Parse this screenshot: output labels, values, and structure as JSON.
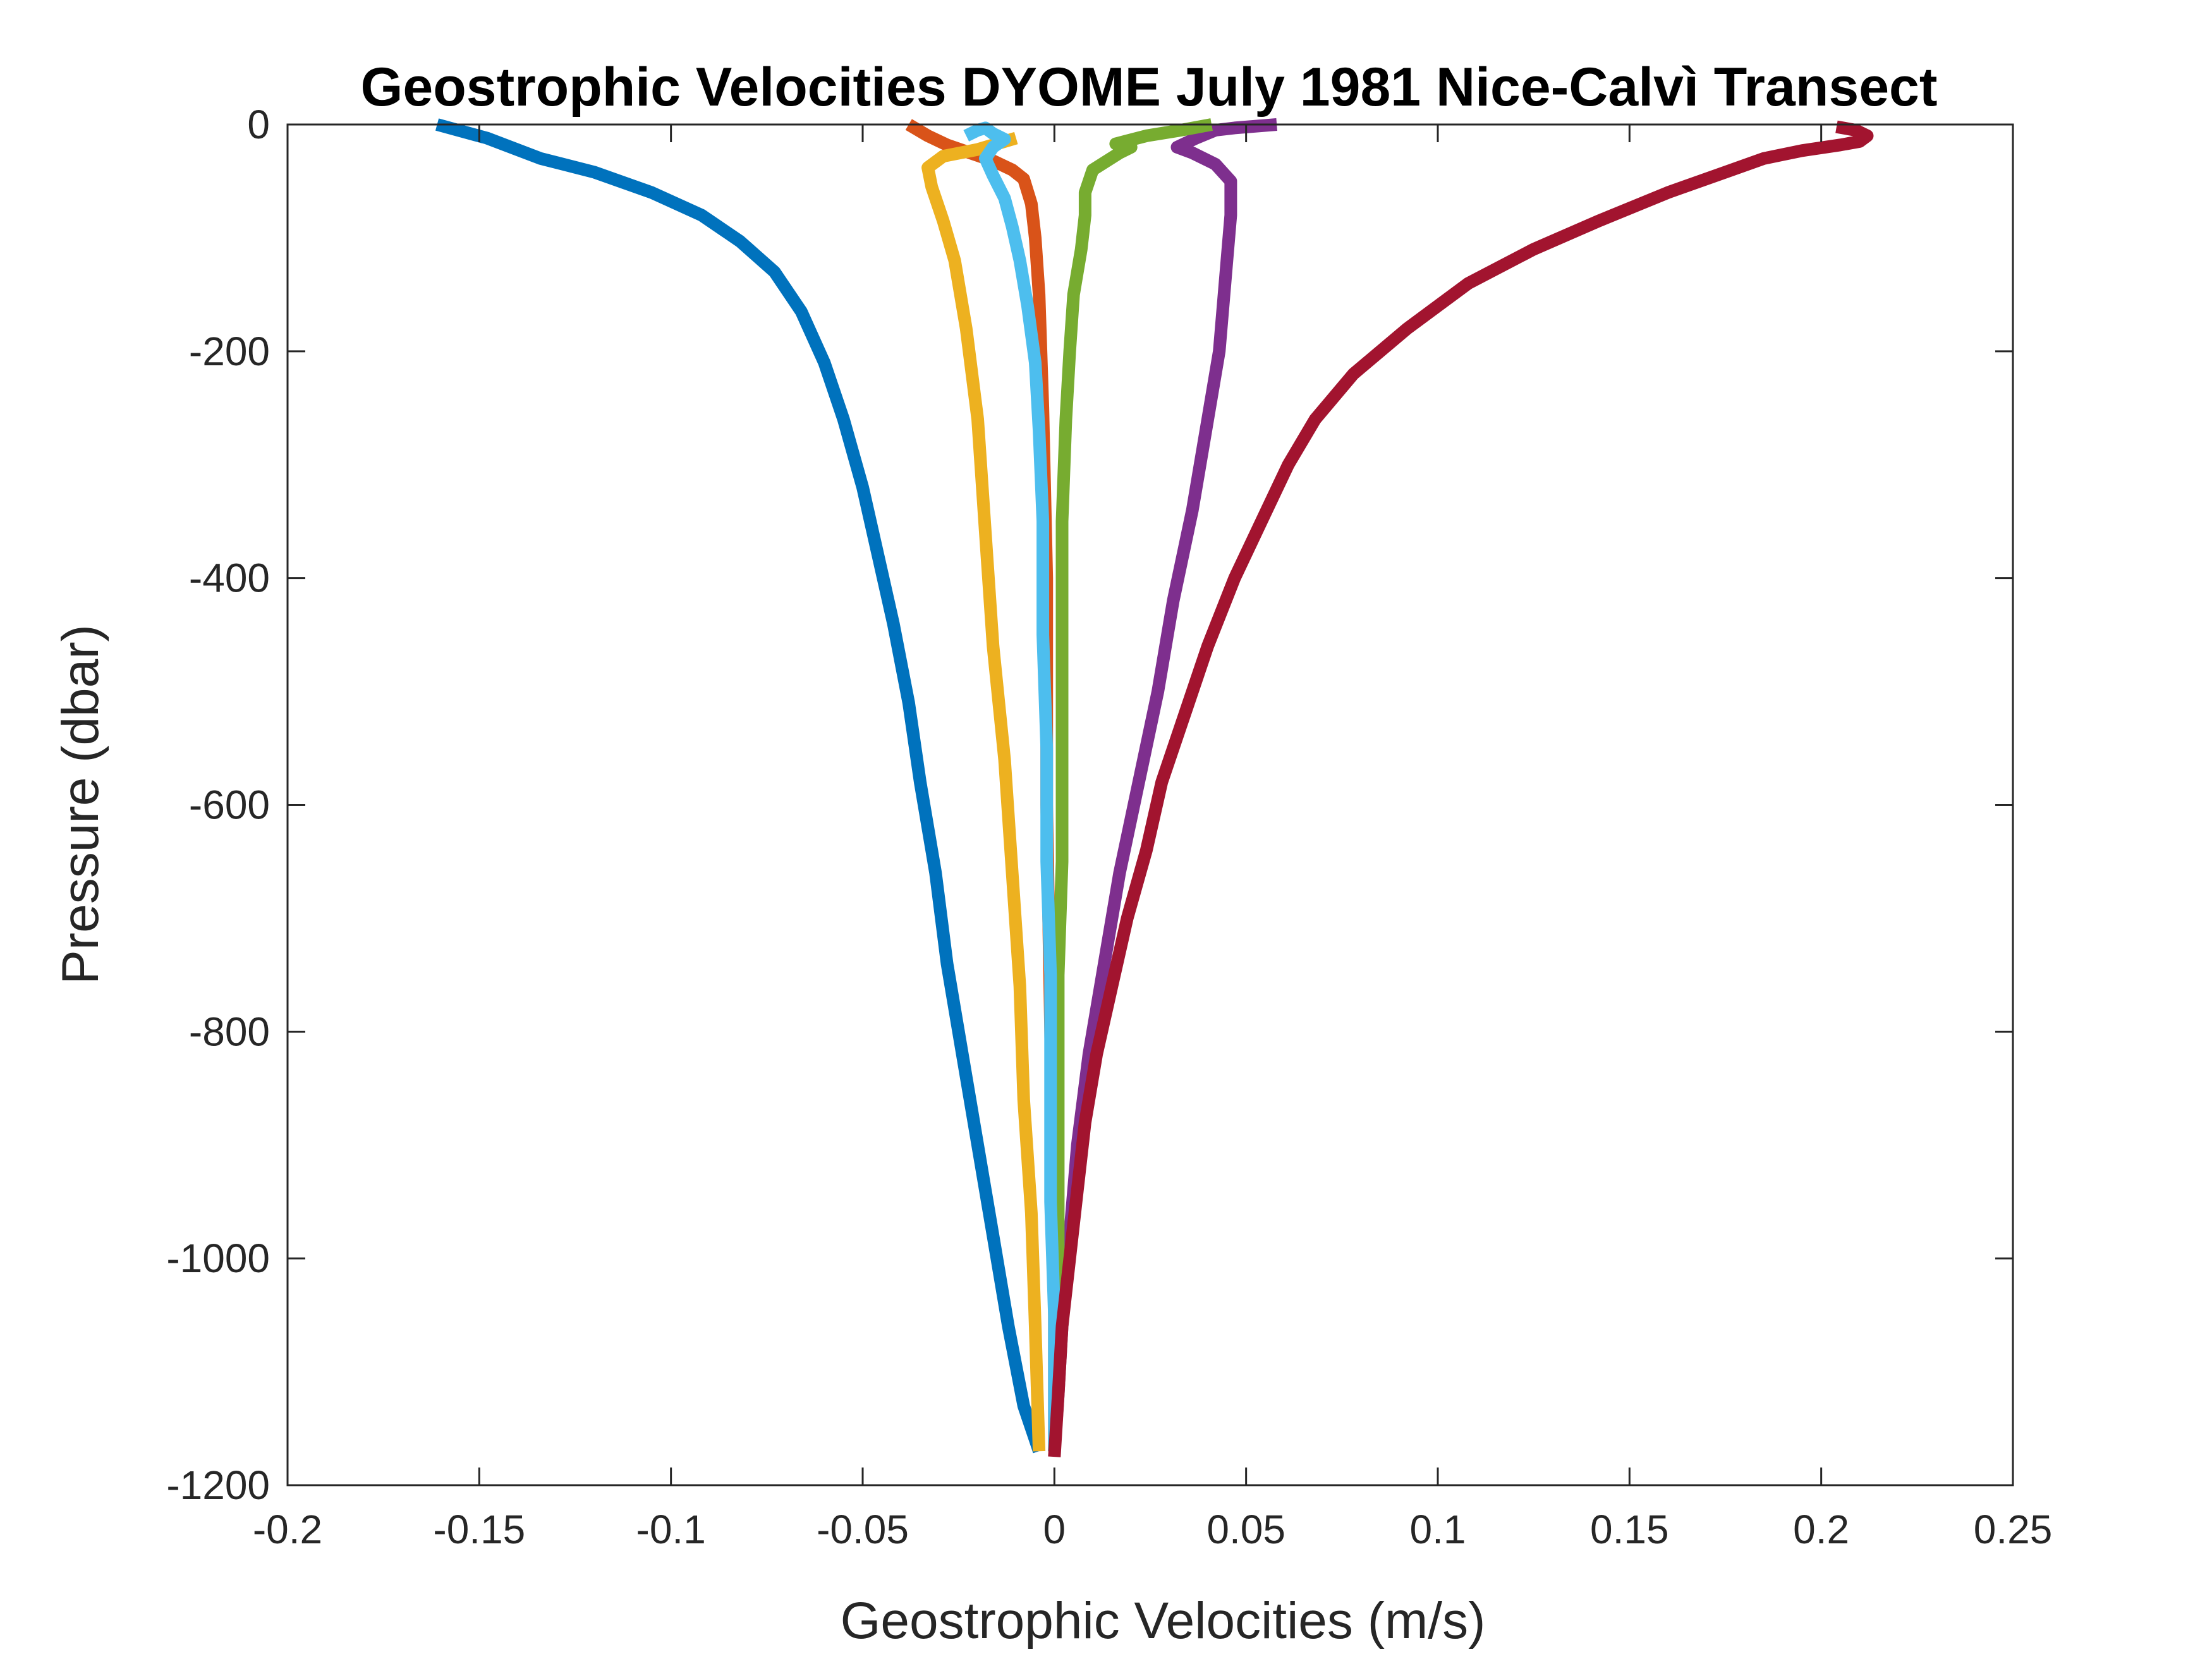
{
  "chart_data": {
    "type": "line",
    "title": "Geostrophic Velocities DYOME July 1981 Nice-Calvì Transect",
    "xlabel": "Geostrophic Velocities (m/s)",
    "ylabel": "Pressure (dbar)",
    "xlim": [
      -0.2,
      0.25
    ],
    "ylim": [
      -1200,
      0
    ],
    "xticks": [
      -0.2,
      -0.15,
      -0.1,
      -0.05,
      0,
      0.05,
      0.1,
      0.15,
      0.2,
      0.25
    ],
    "xtick_labels": [
      "-0.2",
      "-0.15",
      "-0.1",
      "-0.05",
      "0",
      "0.05",
      "0.1",
      "0.15",
      "0.2",
      "0.25"
    ],
    "yticks": [
      0,
      -200,
      -400,
      -600,
      -800,
      -1000,
      -1200
    ],
    "ytick_labels": [
      "0",
      "-200",
      "-400",
      "-600",
      "-800",
      "-1000",
      "-1200"
    ],
    "grid": false,
    "legend": "none",
    "series": [
      {
        "color": "#0072BD",
        "points": [
          [
            -0.161,
            0
          ],
          [
            -0.148,
            -12
          ],
          [
            -0.134,
            -30
          ],
          [
            -0.12,
            -42
          ],
          [
            -0.105,
            -60
          ],
          [
            -0.092,
            -80
          ],
          [
            -0.082,
            -103
          ],
          [
            -0.073,
            -130
          ],
          [
            -0.066,
            -165
          ],
          [
            -0.06,
            -210
          ],
          [
            -0.055,
            -260
          ],
          [
            -0.05,
            -320
          ],
          [
            -0.046,
            -380
          ],
          [
            -0.042,
            -440
          ],
          [
            -0.038,
            -510
          ],
          [
            -0.035,
            -580
          ],
          [
            -0.031,
            -660
          ],
          [
            -0.028,
            -740
          ],
          [
            -0.024,
            -820
          ],
          [
            -0.02,
            -900
          ],
          [
            -0.016,
            -980
          ],
          [
            -0.012,
            -1060
          ],
          [
            -0.008,
            -1130
          ],
          [
            -0.004,
            -1170
          ]
        ]
      },
      {
        "color": "#D95319",
        "points": [
          [
            -0.038,
            0
          ],
          [
            -0.033,
            -10
          ],
          [
            -0.028,
            -18
          ],
          [
            -0.022,
            -25
          ],
          [
            -0.016,
            -32
          ],
          [
            -0.011,
            -40
          ],
          [
            -0.008,
            -48
          ],
          [
            -0.006,
            -70
          ],
          [
            -0.005,
            -100
          ],
          [
            -0.004,
            -150
          ],
          [
            -0.003,
            -250
          ],
          [
            -0.002,
            -400
          ],
          [
            -0.002,
            -600
          ],
          [
            -0.001,
            -800
          ],
          [
            0.0,
            -1000
          ],
          [
            0.0,
            -1170
          ]
        ]
      },
      {
        "color": "#EDB120",
        "points": [
          [
            -0.01,
            -12
          ],
          [
            -0.02,
            -22
          ],
          [
            -0.029,
            -28
          ],
          [
            -0.033,
            -38
          ],
          [
            -0.032,
            -55
          ],
          [
            -0.029,
            -85
          ],
          [
            -0.026,
            -120
          ],
          [
            -0.023,
            -180
          ],
          [
            -0.02,
            -260
          ],
          [
            -0.018,
            -360
          ],
          [
            -0.016,
            -460
          ],
          [
            -0.013,
            -560
          ],
          [
            -0.011,
            -660
          ],
          [
            -0.009,
            -760
          ],
          [
            -0.008,
            -860
          ],
          [
            -0.006,
            -960
          ],
          [
            -0.005,
            -1060
          ],
          [
            -0.004,
            -1170
          ]
        ]
      },
      {
        "color": "#7E2F8E",
        "points": [
          [
            0.058,
            0
          ],
          [
            0.047,
            -3
          ],
          [
            0.042,
            -5
          ],
          [
            0.037,
            -12
          ],
          [
            0.032,
            -20
          ],
          [
            0.036,
            -25
          ],
          [
            0.042,
            -35
          ],
          [
            0.046,
            -50
          ],
          [
            0.046,
            -80
          ],
          [
            0.045,
            -120
          ],
          [
            0.043,
            -200
          ],
          [
            0.04,
            -260
          ],
          [
            0.036,
            -340
          ],
          [
            0.031,
            -420
          ],
          [
            0.027,
            -500
          ],
          [
            0.022,
            -580
          ],
          [
            0.017,
            -660
          ],
          [
            0.013,
            -740
          ],
          [
            0.009,
            -820
          ],
          [
            0.006,
            -900
          ],
          [
            0.004,
            -980
          ],
          [
            0.002,
            -1060
          ],
          [
            0.001,
            -1120
          ],
          [
            0.0,
            -1170
          ]
        ]
      },
      {
        "color": "#77AC30",
        "points": [
          [
            0.041,
            0
          ],
          [
            0.033,
            -5
          ],
          [
            0.024,
            -10
          ],
          [
            0.016,
            -17
          ],
          [
            0.02,
            -20
          ],
          [
            0.017,
            -25
          ],
          [
            0.01,
            -40
          ],
          [
            0.008,
            -60
          ],
          [
            0.008,
            -80
          ],
          [
            0.007,
            -110
          ],
          [
            0.005,
            -150
          ],
          [
            0.004,
            -200
          ],
          [
            0.003,
            -260
          ],
          [
            0.002,
            -350
          ],
          [
            0.002,
            -450
          ],
          [
            0.002,
            -550
          ],
          [
            0.002,
            -650
          ],
          [
            0.001,
            -750
          ],
          [
            0.001,
            -850
          ],
          [
            0.001,
            -950
          ],
          [
            0.001,
            -1050
          ],
          [
            0.0,
            -1170
          ]
        ]
      },
      {
        "color": "#4DBEEE",
        "points": [
          [
            -0.023,
            -10
          ],
          [
            -0.02,
            -5
          ],
          [
            -0.018,
            -3
          ],
          [
            -0.016,
            -8
          ],
          [
            -0.013,
            -13
          ],
          [
            -0.016,
            -20
          ],
          [
            -0.018,
            -30
          ],
          [
            -0.016,
            -45
          ],
          [
            -0.013,
            -65
          ],
          [
            -0.011,
            -90
          ],
          [
            -0.009,
            -120
          ],
          [
            -0.007,
            -160
          ],
          [
            -0.005,
            -210
          ],
          [
            -0.004,
            -270
          ],
          [
            -0.003,
            -350
          ],
          [
            -0.003,
            -450
          ],
          [
            -0.002,
            -550
          ],
          [
            -0.002,
            -650
          ],
          [
            -0.001,
            -750
          ],
          [
            -0.001,
            -850
          ],
          [
            -0.001,
            -950
          ],
          [
            0.0,
            -1050
          ],
          [
            0.0,
            -1170
          ]
        ]
      },
      {
        "color": "#A2142F",
        "points": [
          [
            0.204,
            -2
          ],
          [
            0.209,
            -5
          ],
          [
            0.212,
            -10
          ],
          [
            0.21,
            -15
          ],
          [
            0.205,
            -18
          ],
          [
            0.195,
            -23
          ],
          [
            0.185,
            -30
          ],
          [
            0.175,
            -42
          ],
          [
            0.16,
            -60
          ],
          [
            0.142,
            -85
          ],
          [
            0.125,
            -110
          ],
          [
            0.108,
            -140
          ],
          [
            0.092,
            -180
          ],
          [
            0.078,
            -220
          ],
          [
            0.068,
            -260
          ],
          [
            0.061,
            -300
          ],
          [
            0.054,
            -350
          ],
          [
            0.047,
            -400
          ],
          [
            0.04,
            -460
          ],
          [
            0.034,
            -520
          ],
          [
            0.028,
            -580
          ],
          [
            0.024,
            -640
          ],
          [
            0.019,
            -700
          ],
          [
            0.015,
            -760
          ],
          [
            0.011,
            -820
          ],
          [
            0.008,
            -880
          ],
          [
            0.006,
            -940
          ],
          [
            0.004,
            -1000
          ],
          [
            0.002,
            -1060
          ],
          [
            0.001,
            -1120
          ],
          [
            0.0,
            -1175
          ]
        ]
      }
    ]
  }
}
